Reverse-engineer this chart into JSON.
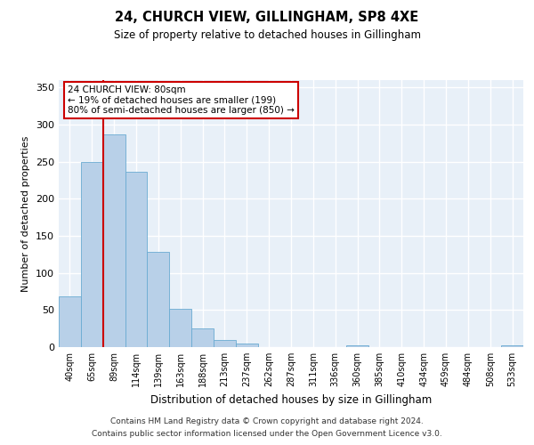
{
  "title": "24, CHURCH VIEW, GILLINGHAM, SP8 4XE",
  "subtitle": "Size of property relative to detached houses in Gillingham",
  "xlabel": "Distribution of detached houses by size in Gillingham",
  "ylabel": "Number of detached properties",
  "bar_labels": [
    "40sqm",
    "65sqm",
    "89sqm",
    "114sqm",
    "139sqm",
    "163sqm",
    "188sqm",
    "213sqm",
    "237sqm",
    "262sqm",
    "287sqm",
    "311sqm",
    "336sqm",
    "360sqm",
    "385sqm",
    "410sqm",
    "434sqm",
    "459sqm",
    "484sqm",
    "508sqm",
    "533sqm"
  ],
  "bar_values": [
    68,
    250,
    287,
    237,
    128,
    52,
    25,
    10,
    5,
    0,
    0,
    0,
    0,
    3,
    0,
    0,
    0,
    0,
    0,
    0,
    3
  ],
  "bar_color": "#b8d0e8",
  "bar_edge_color": "#6aabd2",
  "background_color": "#e8f0f8",
  "grid_color": "#ffffff",
  "vline_color": "#cc0000",
  "vline_x": 1.5,
  "ylim": [
    0,
    360
  ],
  "yticks": [
    0,
    50,
    100,
    150,
    200,
    250,
    300,
    350
  ],
  "annotation_text": "24 CHURCH VIEW: 80sqm\n← 19% of detached houses are smaller (199)\n80% of semi-detached houses are larger (850) →",
  "annotation_box_facecolor": "#ffffff",
  "annotation_box_edgecolor": "#cc0000",
  "footer1": "Contains HM Land Registry data © Crown copyright and database right 2024.",
  "footer2": "Contains public sector information licensed under the Open Government Licence v3.0."
}
